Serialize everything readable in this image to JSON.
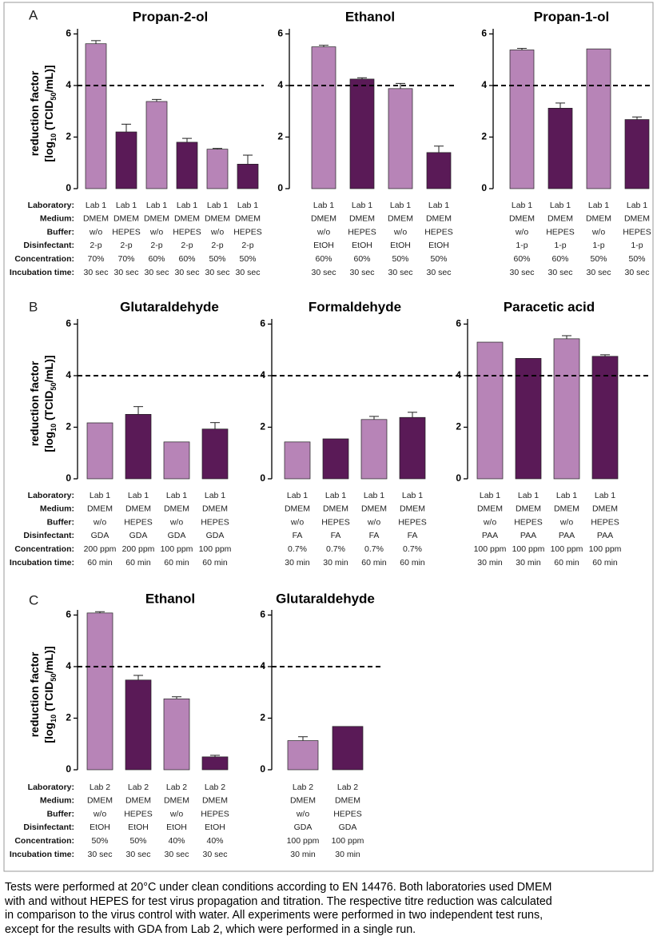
{
  "panels": [
    {
      "label": "A",
      "row_labels": [
        "Laboratory:",
        "Medium:",
        "Buffer:",
        "Disinfectant:",
        "Concentration:",
        "Incubation time:"
      ],
      "ylabel": {
        "line1": "reduction factor",
        "line2": [
          "[log",
          "10",
          " (TCID",
          "50",
          "/mL)]"
        ]
      }
    },
    {
      "label": "B",
      "row_labels": [
        "Laboratory:",
        "Medium:",
        "Buffer:",
        "Disinfectant:",
        "Concentration:",
        "Incubation time:"
      ],
      "ylabel": {
        "line1": "reduction factor",
        "line2": [
          "[log",
          "10",
          " (TCID",
          "50",
          "/mL)]"
        ]
      }
    },
    {
      "label": "C",
      "row_labels": [
        "Laboratory:",
        "Medium:",
        "Buffer:",
        "Disinfectant:",
        "Concentration:",
        "Incubation time:"
      ],
      "ylabel": {
        "line1": "reduction factor",
        "line2": [
          "[log",
          "10",
          " (TCID",
          "50",
          "/mL)]"
        ]
      }
    }
  ],
  "chart_data": [
    {
      "type": "bar",
      "title": "Propan-2-ol",
      "columns": [
        [
          "Lab 1",
          "DMEM",
          "w/o",
          "2-p",
          "70%",
          "30 sec"
        ],
        [
          "Lab 1",
          "DMEM",
          "HEPES",
          "2-p",
          "70%",
          "30 sec"
        ],
        [
          "Lab 1",
          "DMEM",
          "w/o",
          "2-p",
          "60%",
          "30 sec"
        ],
        [
          "Lab 1",
          "DMEM",
          "HEPES",
          "2-p",
          "60%",
          "30 sec"
        ],
        [
          "Lab 1",
          "DMEM",
          "w/o",
          "2-p",
          "50%",
          "30 sec"
        ],
        [
          "Lab 1",
          "DMEM",
          "HEPES",
          "2-p",
          "50%",
          "30 sec"
        ]
      ],
      "values": [
        5.62,
        2.2,
        3.38,
        1.8,
        1.53,
        0.95
      ],
      "errors": [
        0.12,
        0.3,
        0.08,
        0.15,
        0.03,
        0.35
      ],
      "colors": [
        "#b784b7",
        "#5a1a57",
        "#b784b7",
        "#5a1a57",
        "#b784b7",
        "#5a1a57"
      ],
      "ylim": [
        0,
        6.2
      ],
      "yticks": [
        0,
        2,
        4,
        6
      ],
      "reference_line": 4
    },
    {
      "type": "bar",
      "title": "Ethanol",
      "columns": [
        [
          "Lab 1",
          "DMEM",
          "w/o",
          "EtOH",
          "60%",
          "30 sec"
        ],
        [
          "Lab 1",
          "DMEM",
          "HEPES",
          "EtOH",
          "60%",
          "30 sec"
        ],
        [
          "Lab 1",
          "DMEM",
          "w/o",
          "EtOH",
          "50%",
          "30 sec"
        ],
        [
          "Lab 1",
          "DMEM",
          "HEPES",
          "EtOH",
          "50%",
          "30 sec"
        ]
      ],
      "values": [
        5.5,
        4.25,
        3.88,
        1.4
      ],
      "errors": [
        0.06,
        0.05,
        0.2,
        0.25
      ],
      "colors": [
        "#b784b7",
        "#5a1a57",
        "#b784b7",
        "#5a1a57"
      ],
      "ylim": [
        0,
        6.2
      ],
      "yticks": [
        0,
        2,
        4,
        6
      ],
      "reference_line": 4
    },
    {
      "type": "bar",
      "title": "Propan-1-ol",
      "columns": [
        [
          "Lab 1",
          "DMEM",
          "w/o",
          "1-p",
          "60%",
          "30 sec"
        ],
        [
          "Lab 1",
          "DMEM",
          "HEPES",
          "1-p",
          "60%",
          "30 sec"
        ],
        [
          "Lab 1",
          "DMEM",
          "w/o",
          "1-p",
          "50%",
          "30 sec"
        ],
        [
          "Lab 1",
          "DMEM",
          "HEPES",
          "1-p",
          "50%",
          "30 sec"
        ]
      ],
      "values": [
        5.38,
        3.12,
        5.42,
        2.68
      ],
      "errors": [
        0.06,
        0.2,
        null,
        0.1
      ],
      "colors": [
        "#b784b7",
        "#5a1a57",
        "#b784b7",
        "#5a1a57"
      ],
      "ylim": [
        0,
        6.2
      ],
      "yticks": [
        0,
        2,
        4,
        6
      ],
      "reference_line": 4
    },
    {
      "type": "bar",
      "title": "Glutaraldehyde",
      "columns": [
        [
          "Lab 1",
          "DMEM",
          "w/o",
          "GDA",
          "200 ppm",
          "60 min"
        ],
        [
          "Lab 1",
          "DMEM",
          "HEPES",
          "GDA",
          "200 ppm",
          "60 min"
        ],
        [
          "Lab 1",
          "DMEM",
          "w/o",
          "GDA",
          "100 ppm",
          "60 min"
        ],
        [
          "Lab 1",
          "DMEM",
          "HEPES",
          "GDA",
          "100 ppm",
          "60 min"
        ]
      ],
      "values": [
        2.17,
        2.5,
        1.43,
        1.93
      ],
      "errors": [
        null,
        0.3,
        null,
        0.25
      ],
      "colors": [
        "#b784b7",
        "#5a1a57",
        "#b784b7",
        "#5a1a57"
      ],
      "ylim": [
        0,
        6.2
      ],
      "yticks": [
        0,
        2,
        4,
        6
      ],
      "reference_line": 4
    },
    {
      "type": "bar",
      "title": "Formaldehyde",
      "columns": [
        [
          "Lab 1",
          "DMEM",
          "w/o",
          "FA",
          "0.7%",
          "30 min"
        ],
        [
          "Lab 1",
          "DMEM",
          "HEPES",
          "FA",
          "0.7%",
          "30 min"
        ],
        [
          "Lab 1",
          "DMEM",
          "w/o",
          "FA",
          "0.7%",
          "60 min"
        ],
        [
          "Lab 1",
          "DMEM",
          "HEPES",
          "FA",
          "0.7%",
          "60 min"
        ]
      ],
      "values": [
        1.43,
        1.55,
        2.3,
        2.38
      ],
      "errors": [
        null,
        null,
        0.12,
        0.2
      ],
      "colors": [
        "#b784b7",
        "#5a1a57",
        "#b784b7",
        "#5a1a57"
      ],
      "ylim": [
        0,
        6.2
      ],
      "yticks": [
        0,
        2,
        4,
        6
      ],
      "reference_line": 4
    },
    {
      "type": "bar",
      "title": "Paracetic acid",
      "columns": [
        [
          "Lab 1",
          "DMEM",
          "w/o",
          "PAA",
          "100 ppm",
          "30 min"
        ],
        [
          "Lab 1",
          "DMEM",
          "HEPES",
          "PAA",
          "100 ppm",
          "30 min"
        ],
        [
          "Lab 1",
          "DMEM",
          "w/o",
          "PAA",
          "100 ppm",
          "60 min"
        ],
        [
          "Lab 1",
          "DMEM",
          "HEPES",
          "PAA",
          "100 ppm",
          "60 min"
        ]
      ],
      "values": [
        5.3,
        4.67,
        5.43,
        4.75
      ],
      "errors": [
        null,
        null,
        0.12,
        0.06
      ],
      "colors": [
        "#b784b7",
        "#5a1a57",
        "#b784b7",
        "#5a1a57"
      ],
      "ylim": [
        0,
        6.2
      ],
      "yticks": [
        0,
        2,
        4,
        6
      ],
      "reference_line": 4
    },
    {
      "type": "bar",
      "title": "Ethanol",
      "columns": [
        [
          "Lab 2",
          "DMEM",
          "w/o",
          "EtOH",
          "50%",
          "30 sec"
        ],
        [
          "Lab 2",
          "DMEM",
          "HEPES",
          "EtOH",
          "50%",
          "30 sec"
        ],
        [
          "Lab 2",
          "DMEM",
          "w/o",
          "EtOH",
          "40%",
          "30 sec"
        ],
        [
          "Lab 2",
          "DMEM",
          "HEPES",
          "EtOH",
          "40%",
          "30 sec"
        ]
      ],
      "values": [
        6.08,
        3.48,
        2.75,
        0.5
      ],
      "errors": [
        0.05,
        0.18,
        0.08,
        0.06
      ],
      "colors": [
        "#b784b7",
        "#5a1a57",
        "#b784b7",
        "#5a1a57"
      ],
      "ylim": [
        0,
        6.2
      ],
      "yticks": [
        0,
        2,
        4,
        6
      ],
      "reference_line": 4
    },
    {
      "type": "bar",
      "title": "Glutaraldehyde",
      "columns": [
        [
          "Lab 2",
          "DMEM",
          "w/o",
          "GDA",
          "100 ppm",
          "30 min"
        ],
        [
          "Lab 2",
          "DMEM",
          "HEPES",
          "GDA",
          "100 ppm",
          "30 min"
        ]
      ],
      "values": [
        1.13,
        1.68
      ],
      "errors": [
        0.15,
        null
      ],
      "colors": [
        "#b784b7",
        "#5a1a57"
      ],
      "ylim": [
        0,
        6.2
      ],
      "yticks": [
        0,
        2,
        4,
        6
      ],
      "reference_line": 4
    }
  ],
  "caption_lines": [
    "Tests were performed at 20°C under clean conditions according to EN 14476. Both laboratories used DMEM",
    "with and without HEPES for test virus propagation and titration. The respective titre reduction was calculated",
    "in comparison to the virus control with water. All experiments were performed in two independent test runs,",
    "except for the results with GDA from Lab 2, which were performed in a single run."
  ]
}
